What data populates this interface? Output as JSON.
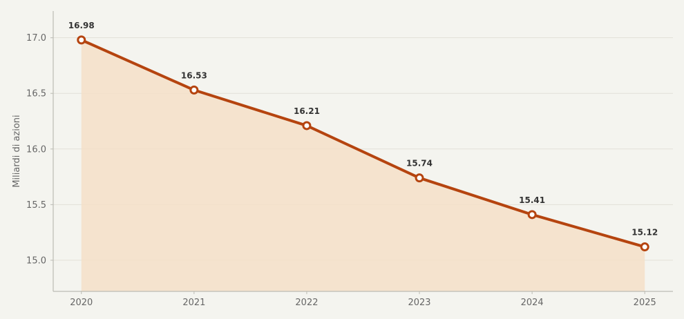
{
  "chart_data": {
    "type": "line",
    "title": "",
    "xlabel": "",
    "ylabel": "Miliardi di azioni",
    "x": [
      2020,
      2021,
      2022,
      2023,
      2024,
      2025
    ],
    "x_tick_labels": [
      "2020",
      "2021",
      "2022",
      "2023",
      "2024",
      "2025"
    ],
    "series": [
      {
        "values": [
          16.98,
          16.53,
          16.21,
          15.74,
          15.41,
          15.12
        ],
        "data_labels": [
          "16.98",
          "16.53",
          "16.21",
          "15.74",
          "15.41",
          "15.12"
        ]
      }
    ],
    "y_ticks": [
      15.0,
      15.5,
      16.0,
      16.5,
      17.0
    ],
    "y_tick_labels": [
      "15.0",
      "15.5",
      "16.0",
      "16.5",
      "17.0"
    ],
    "xlim": [
      2019.75,
      2025.25
    ],
    "ylim": [
      14.72,
      17.24
    ],
    "grid": "horizontal",
    "area_fill": true,
    "colors": {
      "background": "#f4f4ef",
      "line": "#b5440f",
      "area": "#f5dfc8",
      "grid": "#e2e0d8",
      "axis": "#bbbbb3",
      "marker_fill": "#ffffff"
    }
  }
}
